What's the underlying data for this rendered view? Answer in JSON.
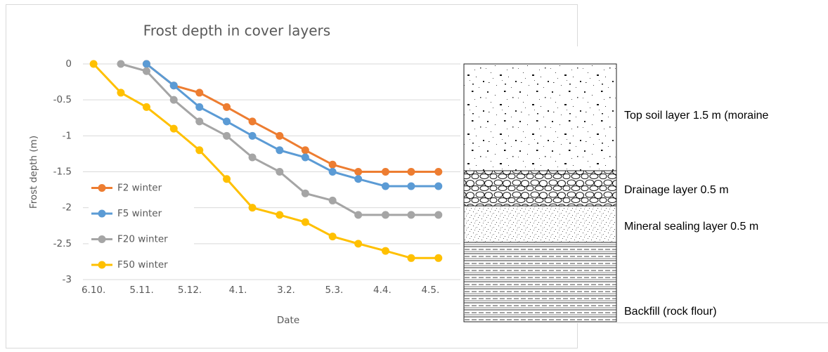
{
  "chart_data": {
    "type": "line",
    "title": "Frost depth in cover layers",
    "xlabel": "Date",
    "ylabel": "Frost depth (m)",
    "x": [
      0,
      17,
      33,
      50,
      66,
      83,
      99,
      116,
      132,
      149,
      165,
      182,
      198,
      215
    ],
    "xlim": [
      -4,
      230
    ],
    "xticks": [
      {
        "value": 0,
        "label": "6.10."
      },
      {
        "value": 30,
        "label": "5.11."
      },
      {
        "value": 60,
        "label": "5.12."
      },
      {
        "value": 90,
        "label": "4.1."
      },
      {
        "value": 120,
        "label": "3.2."
      },
      {
        "value": 150,
        "label": "5.3."
      },
      {
        "value": 180,
        "label": "4.4."
      },
      {
        "value": 210,
        "label": "4.5."
      }
    ],
    "ylim": [
      -3,
      0
    ],
    "yticks": [
      0,
      -0.5,
      -1,
      -1.5,
      -2,
      -2.5,
      -3
    ],
    "grid": true,
    "legend": "lower left",
    "series": [
      {
        "name": "F2 winter",
        "color": "#ed7d31",
        "values": [
          null,
          null,
          0,
          -0.3,
          -0.4,
          -0.6,
          -0.8,
          -1.0,
          -1.2,
          -1.4,
          -1.5,
          -1.5,
          -1.5,
          -1.5
        ]
      },
      {
        "name": "F5 winter",
        "color": "#5b9bd5",
        "values": [
          null,
          null,
          0,
          -0.3,
          -0.6,
          -0.8,
          -1.0,
          -1.2,
          -1.3,
          -1.5,
          -1.6,
          -1.7,
          -1.7,
          -1.7
        ]
      },
      {
        "name": "F20 winter",
        "color": "#a5a5a5",
        "values": [
          null,
          0,
          -0.1,
          -0.5,
          -0.8,
          -1.0,
          -1.3,
          -1.5,
          -1.8,
          -1.9,
          -2.1,
          -2.1,
          -2.1,
          -2.1
        ]
      },
      {
        "name": "F50 winter",
        "color": "#ffc000",
        "values": [
          0,
          -0.4,
          -0.6,
          -0.9,
          -1.2,
          -1.6,
          -2.0,
          -2.1,
          -2.2,
          -2.4,
          -2.5,
          -2.6,
          -2.7,
          -2.7
        ]
      }
    ]
  },
  "diagram": {
    "layers": [
      {
        "label": "Top soil layer 1.5 m (moraine"
      },
      {
        "label": "Drainage layer 0.5 m"
      },
      {
        "label": "Mineral sealing layer 0.5 m"
      },
      {
        "label": "Backfill (rock flour)"
      }
    ]
  }
}
